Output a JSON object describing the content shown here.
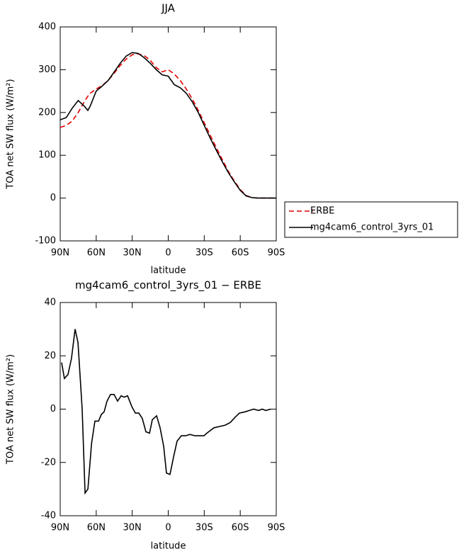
{
  "chart_data": [
    {
      "type": "line",
      "title": "JJA",
      "x_label": "latitude",
      "y_label": "TOA net SW flux (W/m²)",
      "x": [
        90,
        85,
        80,
        75,
        70,
        67,
        65,
        60,
        55,
        50,
        45,
        40,
        35,
        30,
        25,
        20,
        15,
        10,
        5,
        0,
        -5,
        -10,
        -15,
        -20,
        -25,
        -30,
        -35,
        -40,
        -45,
        -50,
        -55,
        -60,
        -65,
        -70,
        -75,
        -80,
        -85,
        -90
      ],
      "series": [
        {
          "name": "ERBE",
          "color": "#e00000",
          "linestyle": "dashed",
          "values": [
            165,
            170,
            180,
            200,
            225,
            238,
            245,
            255,
            263,
            275,
            292,
            310,
            325,
            335,
            337,
            333,
            322,
            305,
            295,
            300,
            290,
            275,
            255,
            232,
            205,
            176,
            147,
            118,
            90,
            63,
            40,
            20,
            6,
            1,
            0,
            0,
            0,
            0
          ]
        },
        {
          "name": "mg4cam6_control_3yrs_01",
          "color": "#000000",
          "linestyle": "solid",
          "values": [
            183,
            188,
            210,
            228,
            215,
            205,
            215,
            250,
            262,
            275,
            295,
            315,
            332,
            340,
            338,
            328,
            315,
            300,
            288,
            285,
            265,
            258,
            245,
            225,
            200,
            170,
            140,
            112,
            85,
            60,
            38,
            18,
            5,
            1,
            0,
            0,
            0,
            0
          ]
        }
      ],
      "xlim": [
        90,
        -90
      ],
      "xticks": [
        {
          "value": 90,
          "label": "90N"
        },
        {
          "value": 60,
          "label": "60N"
        },
        {
          "value": 30,
          "label": "30N"
        },
        0,
        {
          "value": -30,
          "label": "30S"
        },
        {
          "value": -60,
          "label": "60S"
        },
        {
          "value": -90,
          "label": "90S"
        }
      ],
      "ylim": [
        -100,
        400
      ],
      "yticks": [
        -100,
        0,
        100,
        200,
        300,
        400
      ],
      "legend": "right"
    },
    {
      "type": "line",
      "title": "mg4cam6_control_3yrs_01 − ERBE",
      "x_label": "latitude",
      "y_label": "TOA net SW flux (W/m²)",
      "x": [
        88.8,
        86.5,
        83.5,
        80.6,
        77.6,
        75.2,
        71.7,
        69.3,
        66.9,
        63.9,
        61.1,
        58.1,
        55.7,
        53.4,
        51.0,
        48.1,
        45.1,
        42.2,
        39.2,
        36.9,
        33.9,
        30.4,
        27.4,
        24.5,
        21.6,
        18.6,
        15.6,
        13.3,
        9.7,
        6.8,
        3.8,
        1.5,
        -1.5,
        -4.4,
        -7.4,
        -10.9,
        -14.5,
        -18.0,
        -22.2,
        -26.3,
        -29.8,
        -32.2,
        -35.1,
        -38.1,
        -42.8,
        -47.5,
        -51.7,
        -55.8,
        -59.3,
        -64.1,
        -67.6,
        -71.2,
        -75.3,
        -78.3,
        -81.2,
        -85.4
      ],
      "series": [
        {
          "color": "#000000",
          "linestyle": "solid",
          "values": [
            17.5,
            11.5,
            13,
            19,
            30,
            25,
            0,
            -31.5,
            -30,
            -13,
            -4.5,
            -4.5,
            -2,
            -1,
            3,
            5.5,
            5.5,
            3,
            5,
            4.5,
            5,
            1,
            -1.5,
            -1.5,
            -3.5,
            -8.5,
            -9,
            -4,
            -2.5,
            -7,
            -14,
            -24,
            -24.5,
            -18,
            -12,
            -10,
            -10,
            -9.5,
            -10,
            -10,
            -10,
            -9,
            -8,
            -7,
            -6.5,
            -6,
            -5,
            -3,
            -1.5,
            -1,
            -0.5,
            0,
            -0.5,
            0,
            -0.5,
            0
          ]
        }
      ],
      "xlim": [
        90,
        -90
      ],
      "xticks": [
        {
          "value": 90,
          "label": "90N"
        },
        {
          "value": 60,
          "label": "60N"
        },
        {
          "value": 30,
          "label": "30N"
        },
        0,
        {
          "value": -30,
          "label": "30S"
        },
        {
          "value": -60,
          "label": "60S"
        },
        {
          "value": -90,
          "label": "90S"
        }
      ],
      "ylim": [
        -40,
        40
      ],
      "yticks": [
        -40,
        -20,
        0,
        20,
        40
      ]
    }
  ]
}
